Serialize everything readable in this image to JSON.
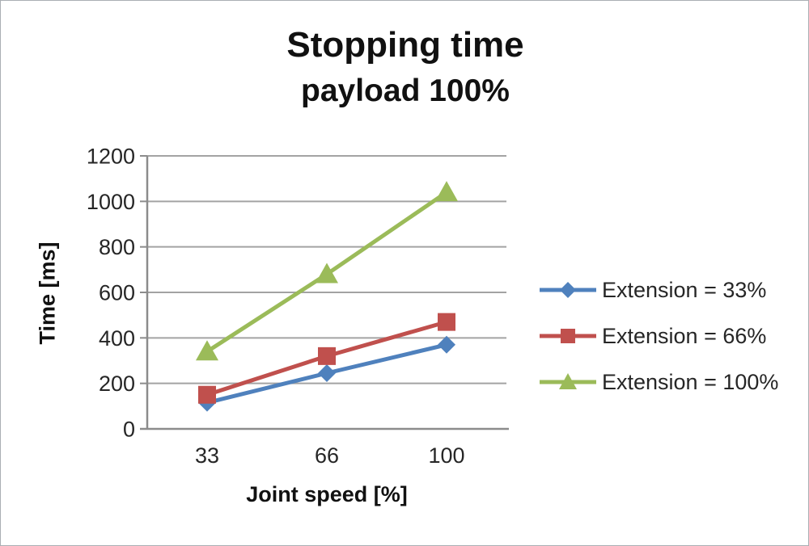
{
  "chart_data": {
    "type": "line",
    "title": "Stopping time",
    "subtitle": "payload 100%",
    "xlabel": "Joint speed [%]",
    "ylabel": "Time [ms]",
    "categories": [
      "33",
      "66",
      "100"
    ],
    "series": [
      {
        "name": "Extension = 33%",
        "marker": "diamond",
        "color": "#4F81BD",
        "values": [
          115,
          245,
          370
        ]
      },
      {
        "name": "Extension = 66%",
        "marker": "square",
        "color": "#C0504D",
        "values": [
          150,
          320,
          470
        ]
      },
      {
        "name": "Extension = 100%",
        "marker": "triangle",
        "color": "#9BBB59",
        "values": [
          340,
          680,
          1040
        ]
      }
    ],
    "ylim": [
      0,
      1200
    ],
    "yticks": [
      0,
      200,
      400,
      600,
      800,
      1000,
      1200
    ],
    "grid": true,
    "legend_position": "right",
    "colors": {
      "grid": "#a3a3a3",
      "axis": "#8c8c8c",
      "tick_text": "#262626",
      "title_text": "#111111"
    }
  }
}
